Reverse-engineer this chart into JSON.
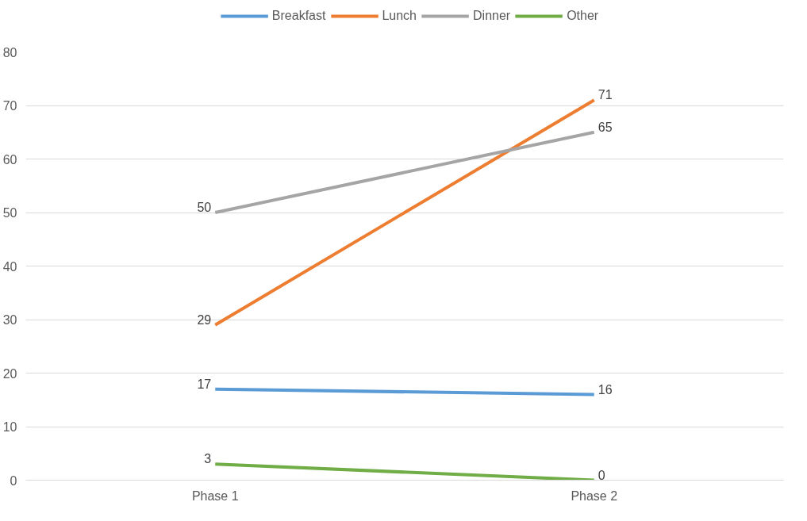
{
  "chart_data": {
    "type": "line",
    "categories": [
      "Phase 1",
      "Phase 2"
    ],
    "series": [
      {
        "name": "Breakfast",
        "color": "#5b9bd5",
        "values": [
          17,
          16
        ]
      },
      {
        "name": "Lunch",
        "color": "#ed7d31",
        "values": [
          29,
          71
        ]
      },
      {
        "name": "Dinner",
        "color": "#a5a5a5",
        "values": [
          50,
          65
        ]
      },
      {
        "name": "Other",
        "color": "#70ad47",
        "values": [
          3,
          0
        ]
      }
    ],
    "ylim": [
      0,
      80
    ],
    "yticks": [
      0,
      10,
      20,
      30,
      40,
      50,
      60,
      70,
      80
    ],
    "grid": "y",
    "legend": "top",
    "data_labels": true,
    "marker": "none",
    "line_style": "solid"
  }
}
